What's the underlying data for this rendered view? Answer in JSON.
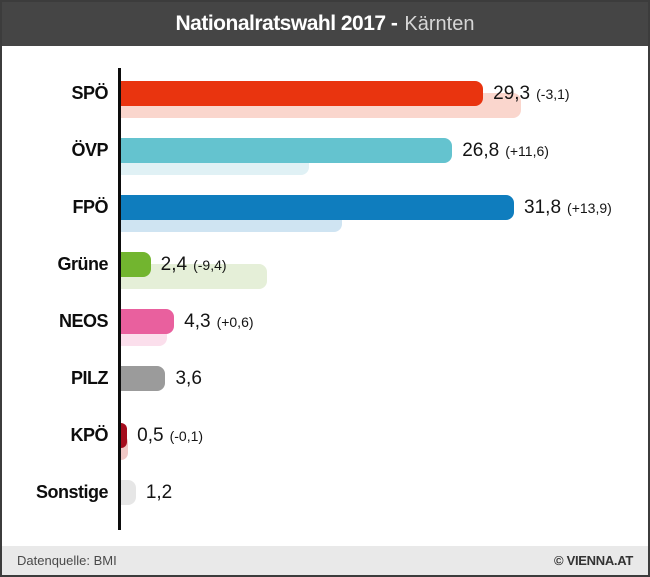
{
  "header": {
    "title_bold": "Nationalratswahl 2017 -",
    "region": "Kärnten"
  },
  "footer": {
    "source": "Datenquelle: BMI",
    "credit": "© VIENNA.AT"
  },
  "chart_data": {
    "type": "bar",
    "orientation": "horizontal",
    "title": "Nationalratswahl 2017 - Kärnten",
    "unit": "percent",
    "xlim": [
      0,
      40
    ],
    "axis_color": "#0d0d0d",
    "note": "main bar = 2017 result, light bar = previous election result",
    "series": [
      {
        "party": "SPÖ",
        "value": 29.3,
        "value_label": "29,3",
        "delta_label": "(-3,1)",
        "previous": 32.4,
        "color": "#e9340f",
        "light_color": "#fad6cd"
      },
      {
        "party": "ÖVP",
        "value": 26.8,
        "value_label": "26,8",
        "delta_label": "(+11,6)",
        "previous": 15.2,
        "color": "#64c3cf",
        "light_color": "#e0f1f5"
      },
      {
        "party": "FPÖ",
        "value": 31.8,
        "value_label": "31,8",
        "delta_label": "(+13,9)",
        "previous": 17.9,
        "color": "#0f7dbe",
        "light_color": "#cfe4f2"
      },
      {
        "party": "Grüne",
        "value": 2.4,
        "value_label": "2,4",
        "delta_label": "(-9,4)",
        "previous": 11.8,
        "color": "#72b52f",
        "light_color": "#e5efd8"
      },
      {
        "party": "NEOS",
        "value": 4.3,
        "value_label": "4,3",
        "delta_label": "(+0,6)",
        "previous": 3.7,
        "color": "#e9609e",
        "light_color": "#fbdfec"
      },
      {
        "party": "PILZ",
        "value": 3.6,
        "value_label": "3,6",
        "delta_label": "",
        "previous": null,
        "color": "#9b9b9b",
        "light_color": null
      },
      {
        "party": "KPÖ",
        "value": 0.5,
        "value_label": "0,5",
        "delta_label": "(-0,1)",
        "previous": 0.6,
        "color": "#a50d1d",
        "light_color": "#f0c8c6"
      },
      {
        "party": "Sonstige",
        "value": 1.2,
        "value_label": "1,2",
        "delta_label": "",
        "previous": null,
        "color": "#e6e6e6",
        "light_color": null
      }
    ]
  }
}
